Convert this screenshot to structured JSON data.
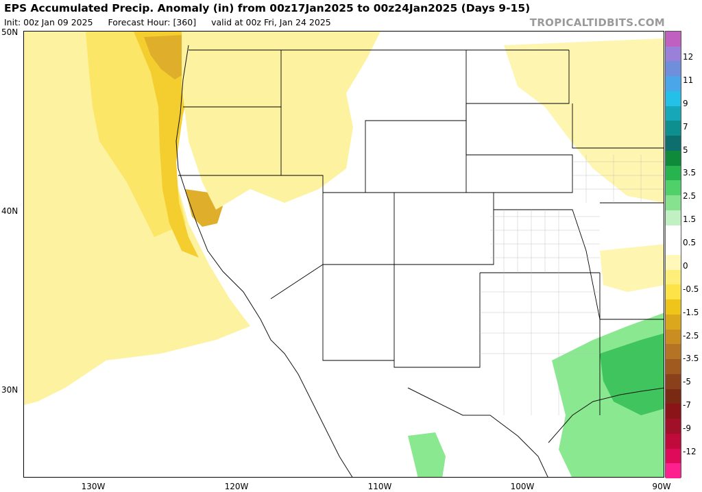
{
  "title": "EPS Accumulated Precip. Anomaly (in) from 00z17Jan2025 to 00z24Jan2025 (Days 9-15)",
  "subtitle": {
    "init": "Init: 00z Jan 09 2025",
    "forecast_hour": "Forecast Hour: [360]",
    "valid": "valid at 00z Fri, Jan 24 2025"
  },
  "watermark": "TROPICALTIDBITS.COM",
  "lat_labels": [
    "50N",
    "40N",
    "30N"
  ],
  "lon_labels": [
    "130W",
    "120W",
    "110W",
    "100W",
    "90W"
  ],
  "colorbar": {
    "labels": [
      "12",
      "11",
      "9",
      "7",
      "5",
      "3.5",
      "2.5",
      "1.5",
      "0.5",
      "0",
      "-0.5",
      "-1.5",
      "-2.5",
      "-3.5",
      "-5",
      "-7",
      "-9",
      "-12"
    ],
    "colors": [
      "#c060c0",
      "#9a80d8",
      "#6f8fdd",
      "#4aa6e8",
      "#23c1e8",
      "#16a7b8",
      "#0e8f8f",
      "#0d6e6e",
      "#0f8a3a",
      "#27b34d",
      "#4fd068",
      "#86e28f",
      "#c1f0c2",
      "#ffffff",
      "#ffffff",
      "#fff8b8",
      "#ffef7a",
      "#fde347",
      "#f0c519",
      "#dba81d",
      "#c98d21",
      "#b57425",
      "#a05a1f",
      "#8a401a",
      "#7a2a12",
      "#8a1418",
      "#a01028",
      "#c00a3c",
      "#e00a5a",
      "#ff2090"
    ]
  },
  "map": {
    "ocean_fill": "#fdf08c",
    "dry_fill": "#f7d23a",
    "very_dry_fill": "#ddaa2a",
    "wet_fill": "#6fe07a",
    "wet_strong_fill": "#33c056"
  }
}
